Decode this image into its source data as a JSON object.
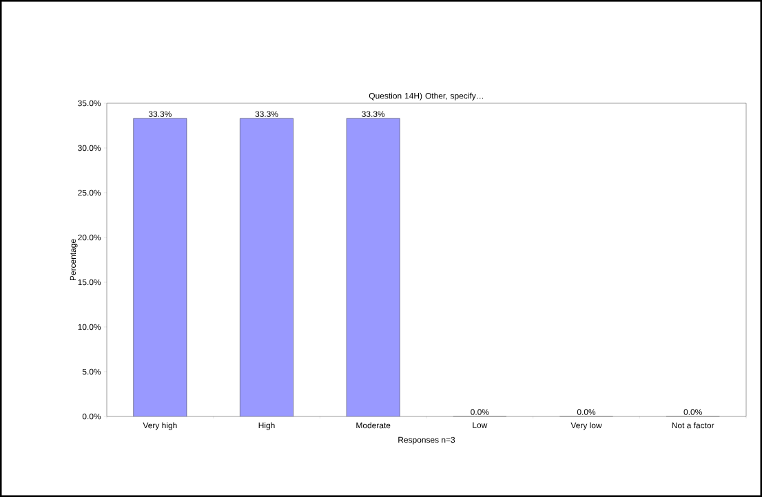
{
  "chart_data": {
    "type": "bar",
    "title": "Question 14H)  Other, specify…",
    "xlabel": "Responses n=3",
    "ylabel": "Percentage",
    "categories": [
      "Very high",
      "High",
      "Moderate",
      "Low",
      "Very low",
      "Not a factor"
    ],
    "values": [
      33.3,
      33.3,
      33.3,
      0,
      0,
      0
    ],
    "color": "#9999ff",
    "value_labels": [
      "33.3%",
      "33.3%",
      "33.3%",
      "0.0%",
      "0.0%",
      "0.0%"
    ],
    "ylim": [
      0,
      35
    ],
    "yticks": [
      {
        "value": 0,
        "label": "0.0%"
      },
      {
        "value": 5,
        "label": "5.0%"
      },
      {
        "value": 10,
        "label": "10.0%"
      },
      {
        "value": 15,
        "label": "15.0%"
      },
      {
        "value": 20,
        "label": "20.0%"
      },
      {
        "value": 25,
        "label": "25.0%"
      },
      {
        "value": 30,
        "label": "30.0%"
      },
      {
        "value": 35,
        "label": "35.0%"
      }
    ],
    "grid": false
  }
}
